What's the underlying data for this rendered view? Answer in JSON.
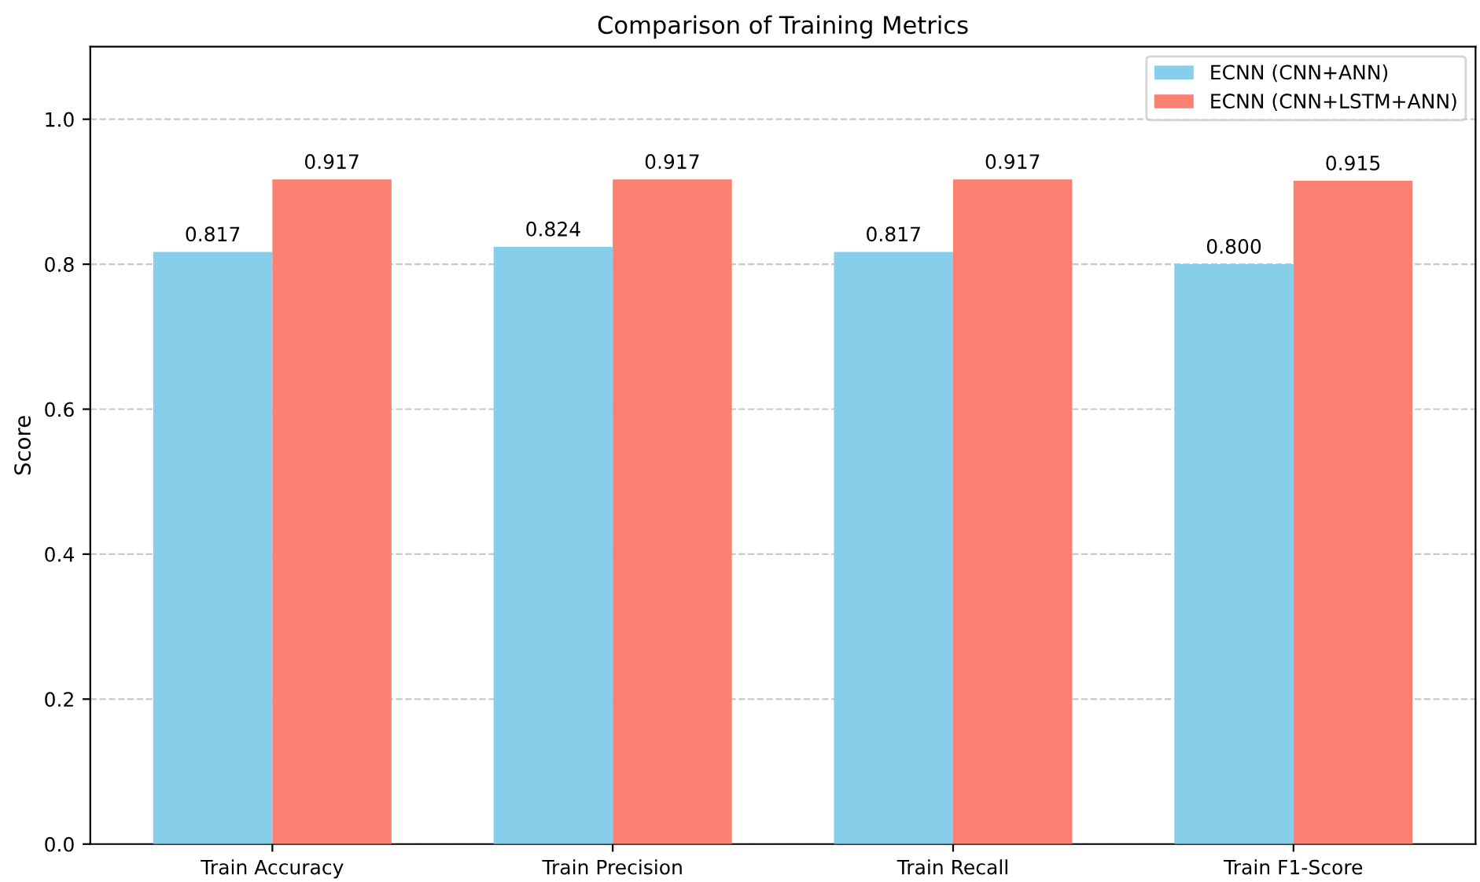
{
  "chart_data": {
    "type": "bar",
    "title": "Comparison of Training Metrics",
    "ylabel": "Score",
    "categories": [
      "Train Accuracy",
      "Train Precision",
      "Train Recall",
      "Train F1-Score"
    ],
    "series": [
      {
        "name": "ECNN (CNN+ANN)",
        "color": "#87ceeb",
        "values": [
          0.817,
          0.824,
          0.817,
          0.8
        ],
        "value_labels": [
          "0.817",
          "0.824",
          "0.817",
          "0.800"
        ]
      },
      {
        "name": "ECNN (CNN+LSTM+ANN)",
        "color": "#fa8072",
        "values": [
          0.917,
          0.917,
          0.917,
          0.915
        ],
        "value_labels": [
          "0.917",
          "0.917",
          "0.917",
          "0.915"
        ]
      }
    ],
    "ylim": [
      0,
      1.1
    ],
    "yticks": [
      {
        "value": 0,
        "label": "0.0"
      },
      {
        "value": 0.2,
        "label": "0.2"
      },
      {
        "value": 0.4,
        "label": "0.4"
      },
      {
        "value": 0.6,
        "label": "0.6"
      },
      {
        "value": 0.8,
        "label": "0.8"
      },
      {
        "value": 1.0,
        "label": "1.0"
      }
    ],
    "grid": "y",
    "legend": "top right"
  }
}
